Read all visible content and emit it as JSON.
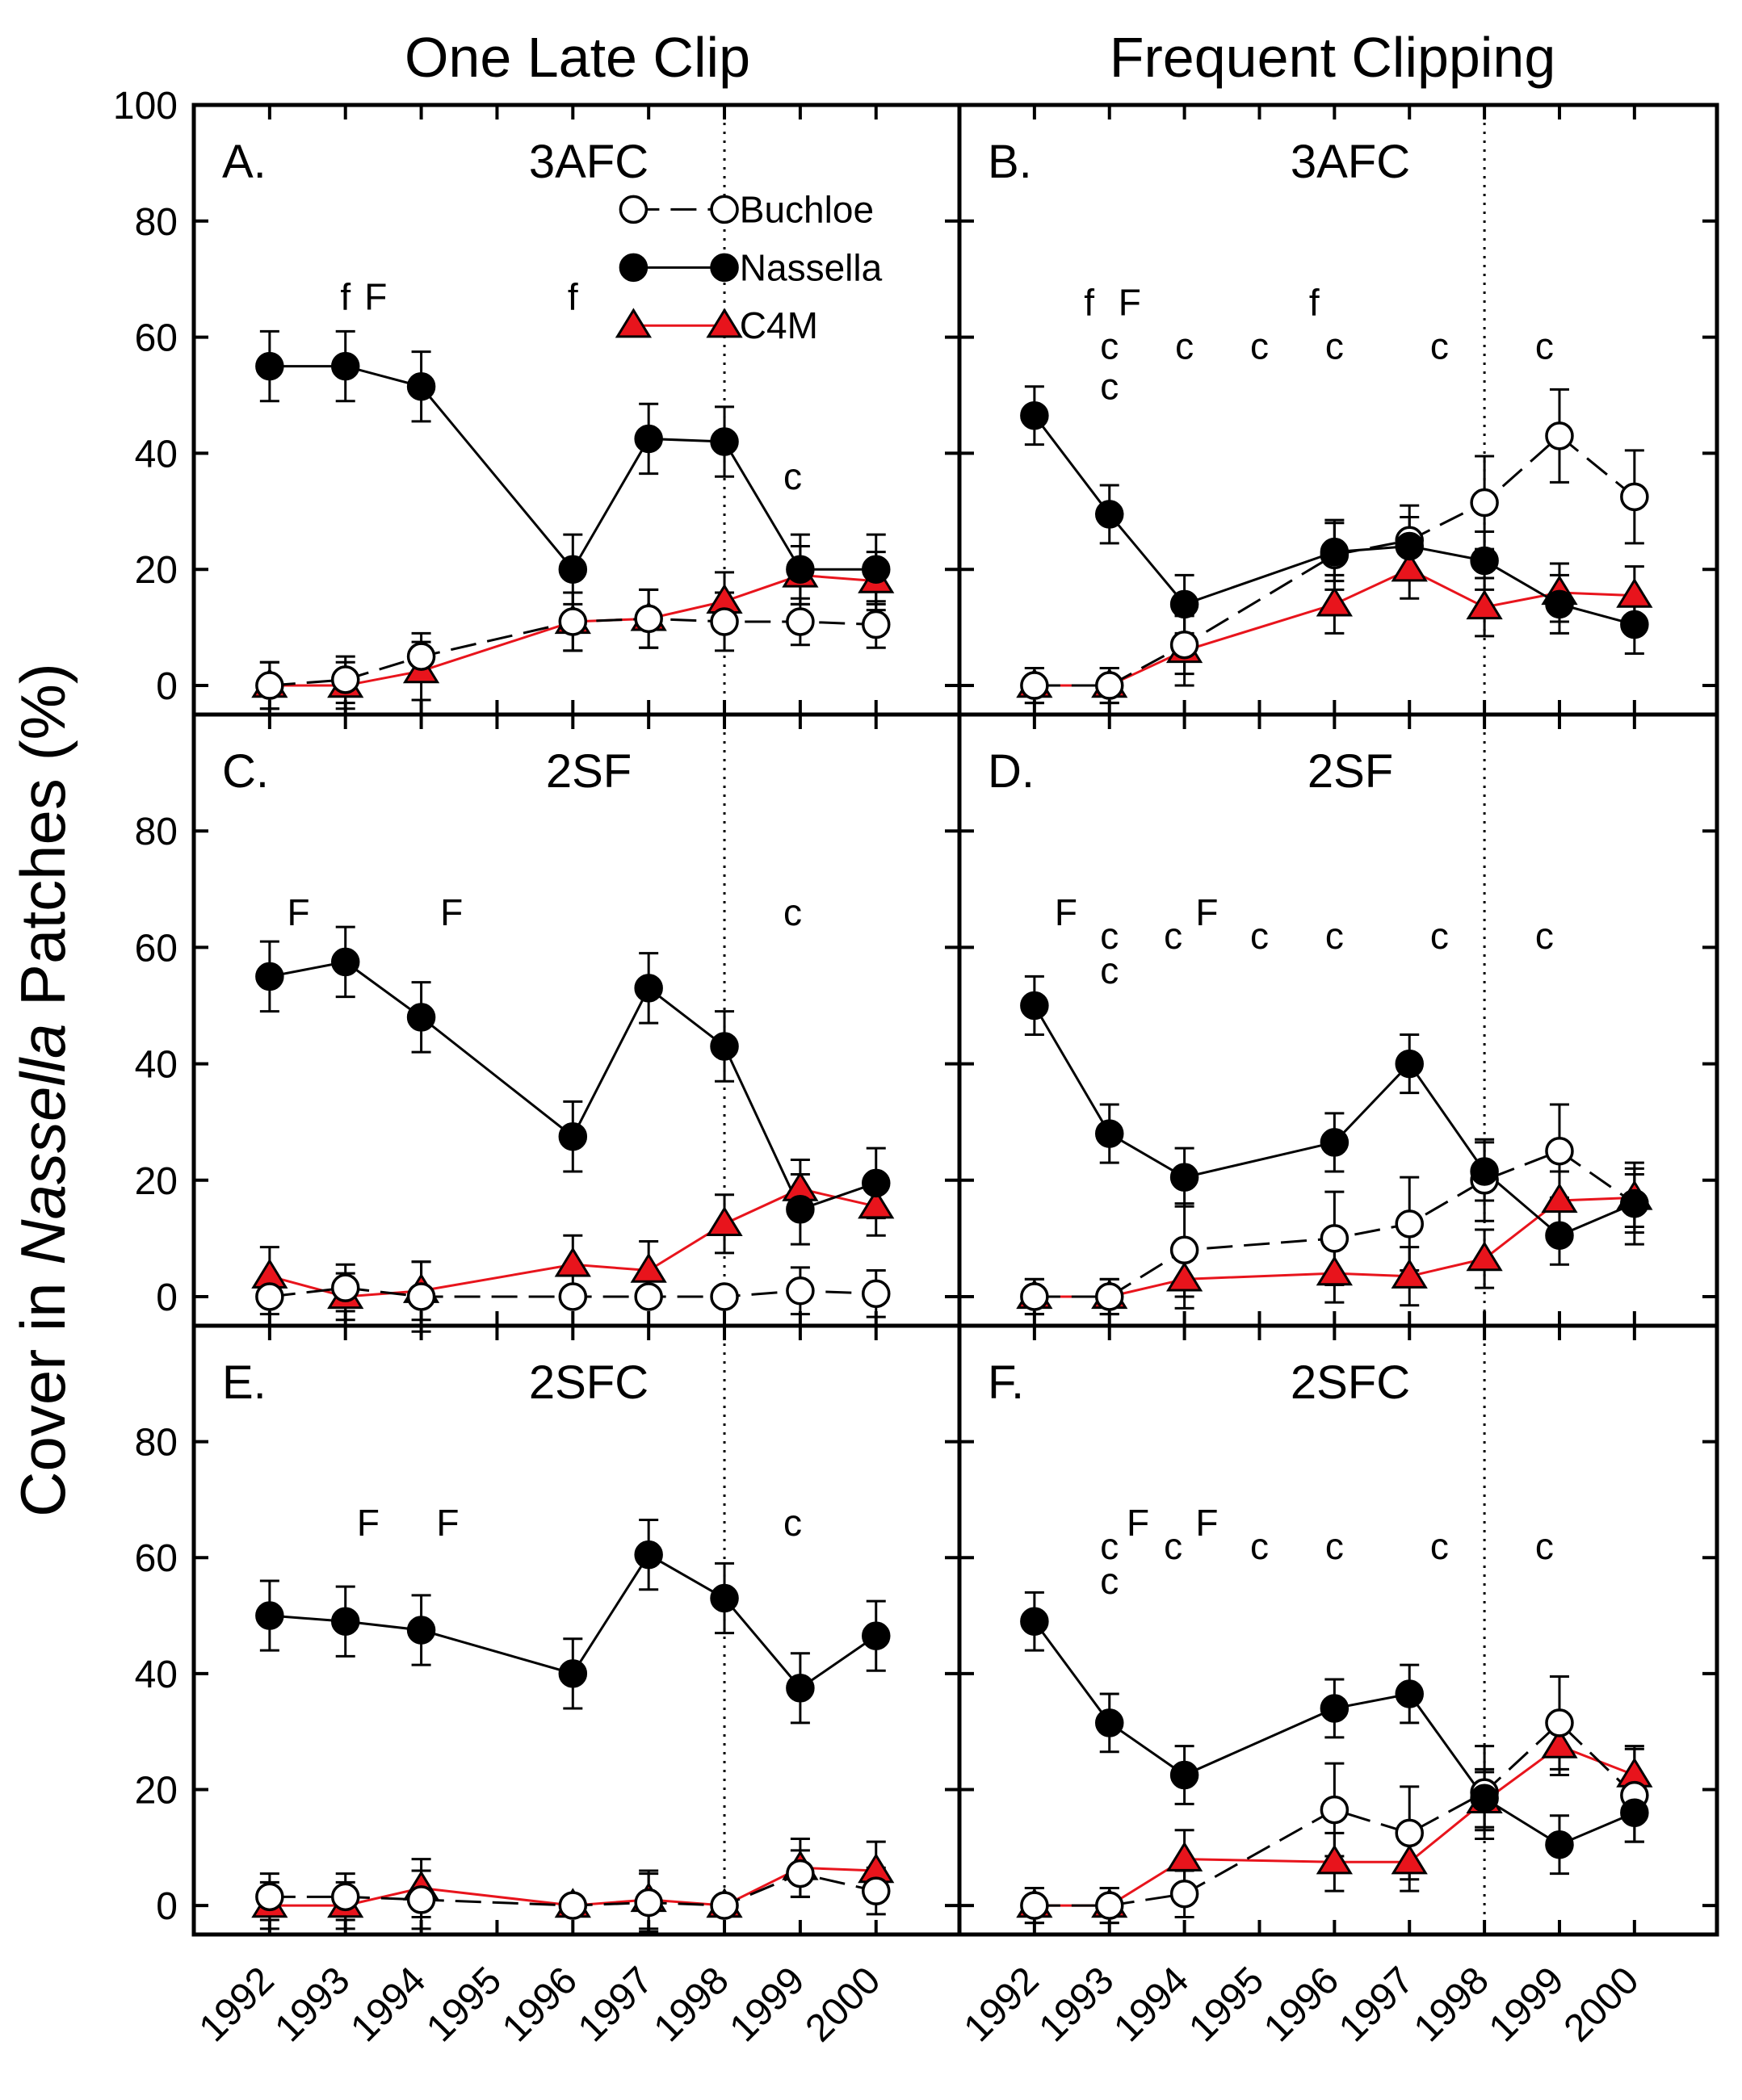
{
  "figure": {
    "column_titles": [
      "One Late Clip",
      "Frequent Clipping"
    ],
    "ylabel_prefix": "Cover in ",
    "ylabel_italic": "Nassella",
    "ylabel_suffix": " Patches (%)",
    "colors": {
      "buchloe_fill": "#ffffff",
      "nassella_fill": "#000000",
      "c4m_fill": "#e8141c",
      "c4m_line": "#e8141c",
      "axis": "#000000"
    }
  },
  "chart_data": {
    "type": "line",
    "x_ticks": [
      1992,
      1993,
      1994,
      1995,
      1996,
      1997,
      1998,
      1999,
      2000
    ],
    "xlim": [
      1991.0,
      2001.1
    ],
    "ylim": [
      -5,
      100
    ],
    "y_ticks_top": [
      0,
      20,
      40,
      60,
      80,
      100
    ],
    "y_ticks_lower": [
      0,
      20,
      40,
      60,
      80
    ],
    "vline_year": 1998,
    "legend": {
      "position": "top-right of panel A",
      "entries": [
        {
          "key": "buchloe",
          "label": "Buchloe"
        },
        {
          "key": "nassella",
          "label": "Nassella"
        },
        {
          "key": "c4m",
          "label": "C4M"
        }
      ]
    },
    "panels": [
      {
        "id": "A",
        "letter": "A.",
        "title": "3AFC",
        "row": 0,
        "col": 0,
        "series": [
          {
            "key": "buchloe",
            "name": "Buchloe",
            "x": [
              1992,
              1993,
              1994,
              1996,
              1997,
              1998,
              1999,
              2000
            ],
            "y": [
              0,
              1,
              5,
              11,
              11.5,
              11,
              11,
              10.5
            ],
            "err": [
              4,
              4,
              4,
              5,
              5,
              5,
              4,
              4
            ]
          },
          {
            "key": "nassella",
            "name": "Nassella",
            "x": [
              1992,
              1993,
              1994,
              1996,
              1997,
              1998,
              1999,
              2000
            ],
            "y": [
              55,
              55,
              51.5,
              20,
              42.5,
              42,
              20,
              20
            ],
            "err": [
              6,
              6,
              6,
              6,
              6,
              6,
              6,
              6
            ]
          },
          {
            "key": "c4m",
            "name": "C4M",
            "x": [
              1992,
              1993,
              1994,
              1996,
              1997,
              1998,
              1999,
              2000
            ],
            "y": [
              0,
              0,
              2.5,
              11,
              11.5,
              14.5,
              19,
              18
            ],
            "err": [
              4,
              4,
              5,
              5,
              5,
              5,
              5,
              5
            ]
          }
        ],
        "annotations": [
          {
            "text": "f",
            "x": 1993.0,
            "y": 67
          },
          {
            "text": "F",
            "x": 1993.4,
            "y": 67
          },
          {
            "text": "f",
            "x": 1996.0,
            "y": 67
          },
          {
            "text": "c",
            "x": 1998.9,
            "y": 36
          }
        ]
      },
      {
        "id": "B",
        "letter": "B.",
        "title": "3AFC",
        "row": 0,
        "col": 1,
        "series": [
          {
            "key": "buchloe",
            "name": "Buchloe",
            "x": [
              1992,
              1993,
              1994,
              1996,
              1997,
              1998,
              1999,
              2000
            ],
            "y": [
              0,
              0,
              7,
              22.5,
              25,
              31.5,
              43,
              32.5
            ],
            "err": [
              3,
              3,
              5,
              6,
              6,
              8,
              8,
              8
            ]
          },
          {
            "key": "nassella",
            "name": "Nassella",
            "x": [
              1992,
              1993,
              1994,
              1996,
              1997,
              1998,
              1999,
              2000
            ],
            "y": [
              46.5,
              29.5,
              14,
              23,
              24,
              21.5,
              14,
              10.5
            ],
            "err": [
              5,
              5,
              5,
              5,
              5,
              5,
              5,
              5
            ]
          },
          {
            "key": "c4m",
            "name": "C4M",
            "x": [
              1992,
              1993,
              1994,
              1996,
              1997,
              1998,
              1999,
              2000
            ],
            "y": [
              0,
              0,
              6,
              14,
              20,
              13.5,
              16,
              15.5
            ],
            "err": [
              3,
              3,
              6,
              5,
              5,
              5,
              5,
              5
            ]
          }
        ],
        "annotations": [
          {
            "text": "f",
            "x": 1992.73,
            "y": 66
          },
          {
            "text": "F",
            "x": 1993.27,
            "y": 66
          },
          {
            "text": "c",
            "x": 1993.0,
            "y": 58.5
          },
          {
            "text": "c",
            "x": 1993.0,
            "y": 51.5
          },
          {
            "text": "c",
            "x": 1994.0,
            "y": 58.5
          },
          {
            "text": "c",
            "x": 1995.0,
            "y": 58.5
          },
          {
            "text": "f",
            "x": 1995.73,
            "y": 66
          },
          {
            "text": "c",
            "x": 1996.0,
            "y": 58.5
          },
          {
            "text": "c",
            "x": 1997.4,
            "y": 58.5
          },
          {
            "text": "c",
            "x": 1998.8,
            "y": 58.5
          }
        ]
      },
      {
        "id": "C",
        "letter": "C.",
        "title": "2SF",
        "row": 1,
        "col": 0,
        "series": [
          {
            "key": "buchloe",
            "name": "Buchloe",
            "x": [
              1992,
              1993,
              1994,
              1996,
              1997,
              1998,
              1999,
              2000
            ],
            "y": [
              0,
              1.5,
              0,
              0,
              0,
              0,
              1,
              0.5
            ],
            "err": [
              3,
              4,
              6,
              0,
              0,
              0,
              4,
              4
            ]
          },
          {
            "key": "nassella",
            "name": "Nassella",
            "x": [
              1992,
              1993,
              1994,
              1996,
              1997,
              1998,
              1999,
              2000
            ],
            "y": [
              55,
              57.5,
              48,
              27.5,
              53,
              43,
              15,
              19.5
            ],
            "err": [
              6,
              6,
              6,
              6,
              6,
              6,
              6,
              6
            ]
          },
          {
            "key": "c4m",
            "name": "C4M",
            "x": [
              1992,
              1993,
              1994,
              1996,
              1997,
              1998,
              1999,
              2000
            ],
            "y": [
              3.5,
              0,
              1,
              5.5,
              4.5,
              12.5,
              18.5,
              15.5
            ],
            "err": [
              5,
              4,
              5,
              5,
              5,
              5,
              5,
              5
            ]
          }
        ],
        "annotations": [
          {
            "text": "F",
            "x": 1992.38,
            "y": 66
          },
          {
            "text": "F",
            "x": 1994.4,
            "y": 66
          },
          {
            "text": "c",
            "x": 1998.9,
            "y": 66
          }
        ]
      },
      {
        "id": "D",
        "letter": "D.",
        "title": "2SF",
        "row": 1,
        "col": 1,
        "series": [
          {
            "key": "buchloe",
            "name": "Buchloe",
            "x": [
              1992,
              1993,
              1994,
              1996,
              1997,
              1998,
              1999,
              2000
            ],
            "y": [
              0,
              0,
              8,
              10,
              12.5,
              20,
              25,
              16
            ],
            "err": [
              3,
              3,
              8,
              8,
              8,
              7,
              8,
              7
            ]
          },
          {
            "key": "nassella",
            "name": "Nassella",
            "x": [
              1992,
              1993,
              1994,
              1996,
              1997,
              1998,
              1999,
              2000
            ],
            "y": [
              50,
              28,
              20.5,
              26.5,
              40,
              21.5,
              10.5,
              16
            ],
            "err": [
              5,
              5,
              5,
              5,
              5,
              5,
              5,
              5
            ]
          },
          {
            "key": "c4m",
            "name": "C4M",
            "x": [
              1992,
              1993,
              1994,
              1996,
              1997,
              1998,
              1999,
              2000
            ],
            "y": [
              0,
              0,
              3,
              4,
              3.5,
              6.5,
              16.5,
              17
            ],
            "err": [
              3,
              3,
              5,
              5,
              5,
              5,
              5,
              5
            ]
          }
        ],
        "annotations": [
          {
            "text": "F",
            "x": 1992.42,
            "y": 66
          },
          {
            "text": "c",
            "x": 1993.0,
            "y": 62
          },
          {
            "text": "c",
            "x": 1993.0,
            "y": 56
          },
          {
            "text": "c",
            "x": 1993.85,
            "y": 62
          },
          {
            "text": "F",
            "x": 1994.3,
            "y": 66
          },
          {
            "text": "c",
            "x": 1995.0,
            "y": 62
          },
          {
            "text": "c",
            "x": 1996.0,
            "y": 62
          },
          {
            "text": "c",
            "x": 1997.4,
            "y": 62
          },
          {
            "text": "c",
            "x": 1998.8,
            "y": 62
          }
        ]
      },
      {
        "id": "E",
        "letter": "E.",
        "title": "2SFC",
        "row": 2,
        "col": 0,
        "series": [
          {
            "key": "buchloe",
            "name": "Buchloe",
            "x": [
              1992,
              1993,
              1994,
              1996,
              1997,
              1998,
              1999,
              2000
            ],
            "y": [
              1.5,
              1.5,
              1,
              0,
              0.5,
              0,
              5.5,
              2.5
            ],
            "err": [
              4,
              4,
              5,
              0,
              5,
              0,
              4,
              4
            ]
          },
          {
            "key": "nassella",
            "name": "Nassella",
            "x": [
              1992,
              1993,
              1994,
              1996,
              1997,
              1998,
              1999,
              2000
            ],
            "y": [
              50,
              49,
              47.5,
              40,
              60.5,
              53,
              37.5,
              46.5
            ],
            "err": [
              6,
              6,
              6,
              6,
              6,
              6,
              6,
              6
            ]
          },
          {
            "key": "c4m",
            "name": "C4M",
            "x": [
              1992,
              1993,
              1994,
              1996,
              1997,
              1998,
              1999,
              2000
            ],
            "y": [
              0,
              0,
              3,
              0,
              1,
              0,
              6.5,
              6
            ],
            "err": [
              4,
              4,
              5,
              0,
              5,
              0,
              5,
              5
            ]
          }
        ],
        "annotations": [
          {
            "text": "F",
            "x": 1993.3,
            "y": 66
          },
          {
            "text": "F",
            "x": 1994.35,
            "y": 66
          },
          {
            "text": "c",
            "x": 1998.9,
            "y": 66
          }
        ]
      },
      {
        "id": "F",
        "letter": "F.",
        "title": "2SFC",
        "row": 2,
        "col": 1,
        "series": [
          {
            "key": "buchloe",
            "name": "Buchloe",
            "x": [
              1992,
              1993,
              1994,
              1996,
              1997,
              1998,
              1999,
              2000
            ],
            "y": [
              0,
              0,
              2,
              16.5,
              12.5,
              19.5,
              31.5,
              19
            ],
            "err": [
              3,
              3,
              4,
              8,
              8,
              8,
              8,
              8
            ]
          },
          {
            "key": "nassella",
            "name": "Nassella",
            "x": [
              1992,
              1993,
              1994,
              1996,
              1997,
              1998,
              1999,
              2000
            ],
            "y": [
              49,
              31.5,
              22.5,
              34,
              36.5,
              18.5,
              10.5,
              16
            ],
            "err": [
              5,
              5,
              5,
              5,
              5,
              5,
              5,
              5
            ]
          },
          {
            "key": "c4m",
            "name": "C4M",
            "x": [
              1992,
              1993,
              1994,
              1996,
              1997,
              1998,
              1999,
              2000
            ],
            "y": [
              0,
              0,
              8,
              7.5,
              7.5,
              18,
              27.5,
              22.5
            ],
            "err": [
              3,
              3,
              5,
              5,
              5,
              5,
              5,
              5
            ]
          }
        ],
        "annotations": [
          {
            "text": "c",
            "x": 1993.0,
            "y": 62
          },
          {
            "text": "c",
            "x": 1993.0,
            "y": 56
          },
          {
            "text": "F",
            "x": 1993.38,
            "y": 66
          },
          {
            "text": "c",
            "x": 1993.85,
            "y": 62
          },
          {
            "text": "F",
            "x": 1994.3,
            "y": 66
          },
          {
            "text": "c",
            "x": 1995.0,
            "y": 62
          },
          {
            "text": "c",
            "x": 1996.0,
            "y": 62
          },
          {
            "text": "c",
            "x": 1997.4,
            "y": 62
          },
          {
            "text": "c",
            "x": 1998.8,
            "y": 62
          }
        ]
      }
    ]
  }
}
